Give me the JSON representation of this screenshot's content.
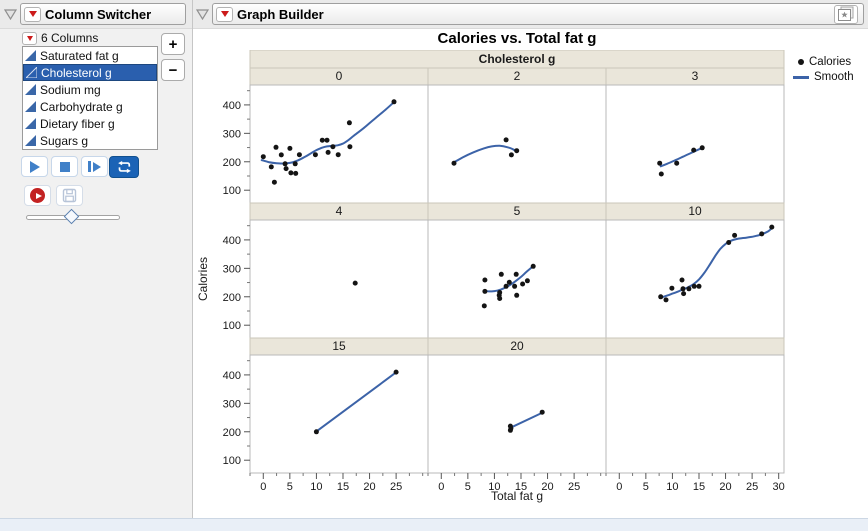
{
  "column_switcher": {
    "title": "Column Switcher",
    "columns_summary": "6 Columns",
    "items": [
      {
        "label": "Saturated fat g",
        "selected": false
      },
      {
        "label": "Cholesterol g",
        "selected": true
      },
      {
        "label": "Sodium mg",
        "selected": false
      },
      {
        "label": "Carbohydrate g",
        "selected": false
      },
      {
        "label": "Dietary fiber g",
        "selected": false
      },
      {
        "label": "Sugars g",
        "selected": false
      }
    ],
    "add_label": "+",
    "remove_label": "−",
    "slider_value_pct": 48
  },
  "graph_builder": {
    "title": "Graph Builder"
  },
  "chart_data": {
    "type": "scatter",
    "title": "Calories vs. Total fat g",
    "xlabel": "Total fat g",
    "ylabel": "Calories",
    "group_label": "Cholesterol g",
    "legend": [
      {
        "label": "Calories",
        "marker": "point"
      },
      {
        "label": "Smooth",
        "marker": "line"
      }
    ],
    "x_domain": [
      -2.5,
      31
    ],
    "y_domain": [
      55,
      470
    ],
    "y_ticks": [
      100,
      200,
      300,
      400
    ],
    "y_minor_ticks": [
      150,
      250,
      350,
      450
    ],
    "x_minor_step": 2.5,
    "x_ticks_per_column": [
      [
        0,
        5,
        10,
        15,
        20,
        25
      ],
      [
        0,
        5,
        10,
        15,
        20,
        25
      ],
      [
        0,
        5,
        10,
        15,
        20,
        25,
        30
      ]
    ],
    "colors": {
      "point": "#141414",
      "smooth": "#3c63a8",
      "band_bg": "#eae6da",
      "band_border": "#cbc7ba",
      "panel_border": "#b9b9b9",
      "selection": "#2a5fae"
    },
    "panels": [
      {
        "group": "0",
        "points": [
          [
            0,
            218
          ],
          [
            1.5,
            182
          ],
          [
            2.1,
            128
          ],
          [
            2.4,
            251
          ],
          [
            3.4,
            224
          ],
          [
            4.1,
            193
          ],
          [
            4.3,
            176
          ],
          [
            5,
            247
          ],
          [
            5.2,
            161
          ],
          [
            6,
            193
          ],
          [
            6.1,
            159
          ],
          [
            6.8,
            225
          ],
          [
            9.8,
            225
          ],
          [
            11.1,
            276
          ],
          [
            12,
            276
          ],
          [
            12.2,
            233
          ],
          [
            13.1,
            253
          ],
          [
            14.1,
            225
          ],
          [
            16.2,
            337
          ],
          [
            16.3,
            253
          ],
          [
            24.6,
            411
          ]
        ],
        "smooth": [
          [
            -0.3,
            206
          ],
          [
            1,
            199
          ],
          [
            2.5,
            195
          ],
          [
            4,
            194
          ],
          [
            5,
            196
          ],
          [
            6,
            201
          ],
          [
            7,
            209
          ],
          [
            8,
            219
          ],
          [
            9,
            230
          ],
          [
            10,
            241
          ],
          [
            11,
            249
          ],
          [
            12,
            254
          ],
          [
            13,
            256
          ],
          [
            14,
            258
          ],
          [
            15,
            264
          ],
          [
            16,
            276
          ],
          [
            17,
            291
          ],
          [
            19,
            320
          ],
          [
            21,
            352
          ],
          [
            23,
            383
          ],
          [
            24.6,
            410
          ]
        ]
      },
      {
        "group": "2",
        "points": [
          [
            2.4,
            195
          ],
          [
            12.2,
            277
          ],
          [
            13.2,
            224
          ],
          [
            14.2,
            239
          ]
        ],
        "smooth": [
          [
            2.4,
            198
          ],
          [
            4,
            215
          ],
          [
            6,
            233
          ],
          [
            8,
            247
          ],
          [
            9.5,
            254
          ],
          [
            11,
            256
          ],
          [
            12.5,
            251
          ],
          [
            13.5,
            244
          ],
          [
            14.2,
            236
          ]
        ]
      },
      {
        "group": "3",
        "points": [
          [
            7.6,
            195
          ],
          [
            7.9,
            157
          ],
          [
            10.8,
            195
          ],
          [
            14,
            241
          ],
          [
            15.6,
            249
          ]
        ],
        "smooth": [
          [
            7.8,
            184
          ],
          [
            9,
            193
          ],
          [
            10.5,
            205
          ],
          [
            12,
            218
          ],
          [
            13.5,
            231
          ],
          [
            15,
            244
          ],
          [
            15.6,
            249
          ]
        ]
      },
      {
        "group": "4",
        "points": [
          [
            17.3,
            248
          ]
        ],
        "smooth": []
      },
      {
        "group": "5",
        "points": [
          [
            8.1,
            168
          ],
          [
            8.2,
            219
          ],
          [
            8.2,
            259
          ],
          [
            10.9,
            205
          ],
          [
            11,
            194
          ],
          [
            11,
            215
          ],
          [
            11.3,
            279
          ],
          [
            12.2,
            237
          ],
          [
            12.8,
            251
          ],
          [
            13.8,
            237
          ],
          [
            14.1,
            279
          ],
          [
            14.2,
            205
          ],
          [
            15.3,
            245
          ],
          [
            16.2,
            256
          ],
          [
            17.3,
            307
          ]
        ],
        "smooth": [
          [
            8,
            222
          ],
          [
            9,
            219
          ],
          [
            10,
            220
          ],
          [
            11,
            224
          ],
          [
            12,
            232
          ],
          [
            13,
            242
          ],
          [
            14,
            255
          ],
          [
            15,
            270
          ],
          [
            16,
            287
          ],
          [
            17.3,
            308
          ]
        ]
      },
      {
        "group": "10",
        "points": [
          [
            7.8,
            200
          ],
          [
            8.8,
            189
          ],
          [
            9.9,
            230
          ],
          [
            11.8,
            259
          ],
          [
            12,
            228
          ],
          [
            12.1,
            211
          ],
          [
            13.1,
            228
          ],
          [
            14.1,
            237
          ],
          [
            15,
            237
          ],
          [
            20.6,
            391
          ],
          [
            21.7,
            416
          ],
          [
            26.8,
            421
          ],
          [
            28.7,
            445
          ]
        ],
        "smooth": [
          [
            7.8,
            197
          ],
          [
            9,
            204
          ],
          [
            10,
            211
          ],
          [
            11,
            218
          ],
          [
            12,
            226
          ],
          [
            13,
            234
          ],
          [
            14,
            245
          ],
          [
            15,
            261
          ],
          [
            16,
            284
          ],
          [
            17,
            312
          ],
          [
            18,
            342
          ],
          [
            19,
            368
          ],
          [
            20,
            386
          ],
          [
            21,
            397
          ],
          [
            22,
            403
          ],
          [
            23,
            406
          ],
          [
            24,
            408
          ],
          [
            25,
            411
          ],
          [
            26,
            415
          ],
          [
            27,
            421
          ],
          [
            28,
            430
          ],
          [
            28.7,
            441
          ]
        ]
      },
      {
        "group": "15",
        "points": [
          [
            10,
            200
          ],
          [
            25,
            410
          ]
        ],
        "smooth": [
          [
            10,
            201
          ],
          [
            25,
            409
          ]
        ]
      },
      {
        "group": "20",
        "points": [
          [
            13,
            205
          ],
          [
            13.1,
            212
          ],
          [
            13,
            220
          ],
          [
            19,
            269
          ]
        ],
        "smooth": [
          [
            13,
            214
          ],
          [
            19,
            267
          ]
        ]
      },
      {
        "group": "",
        "points": [],
        "smooth": []
      }
    ]
  }
}
